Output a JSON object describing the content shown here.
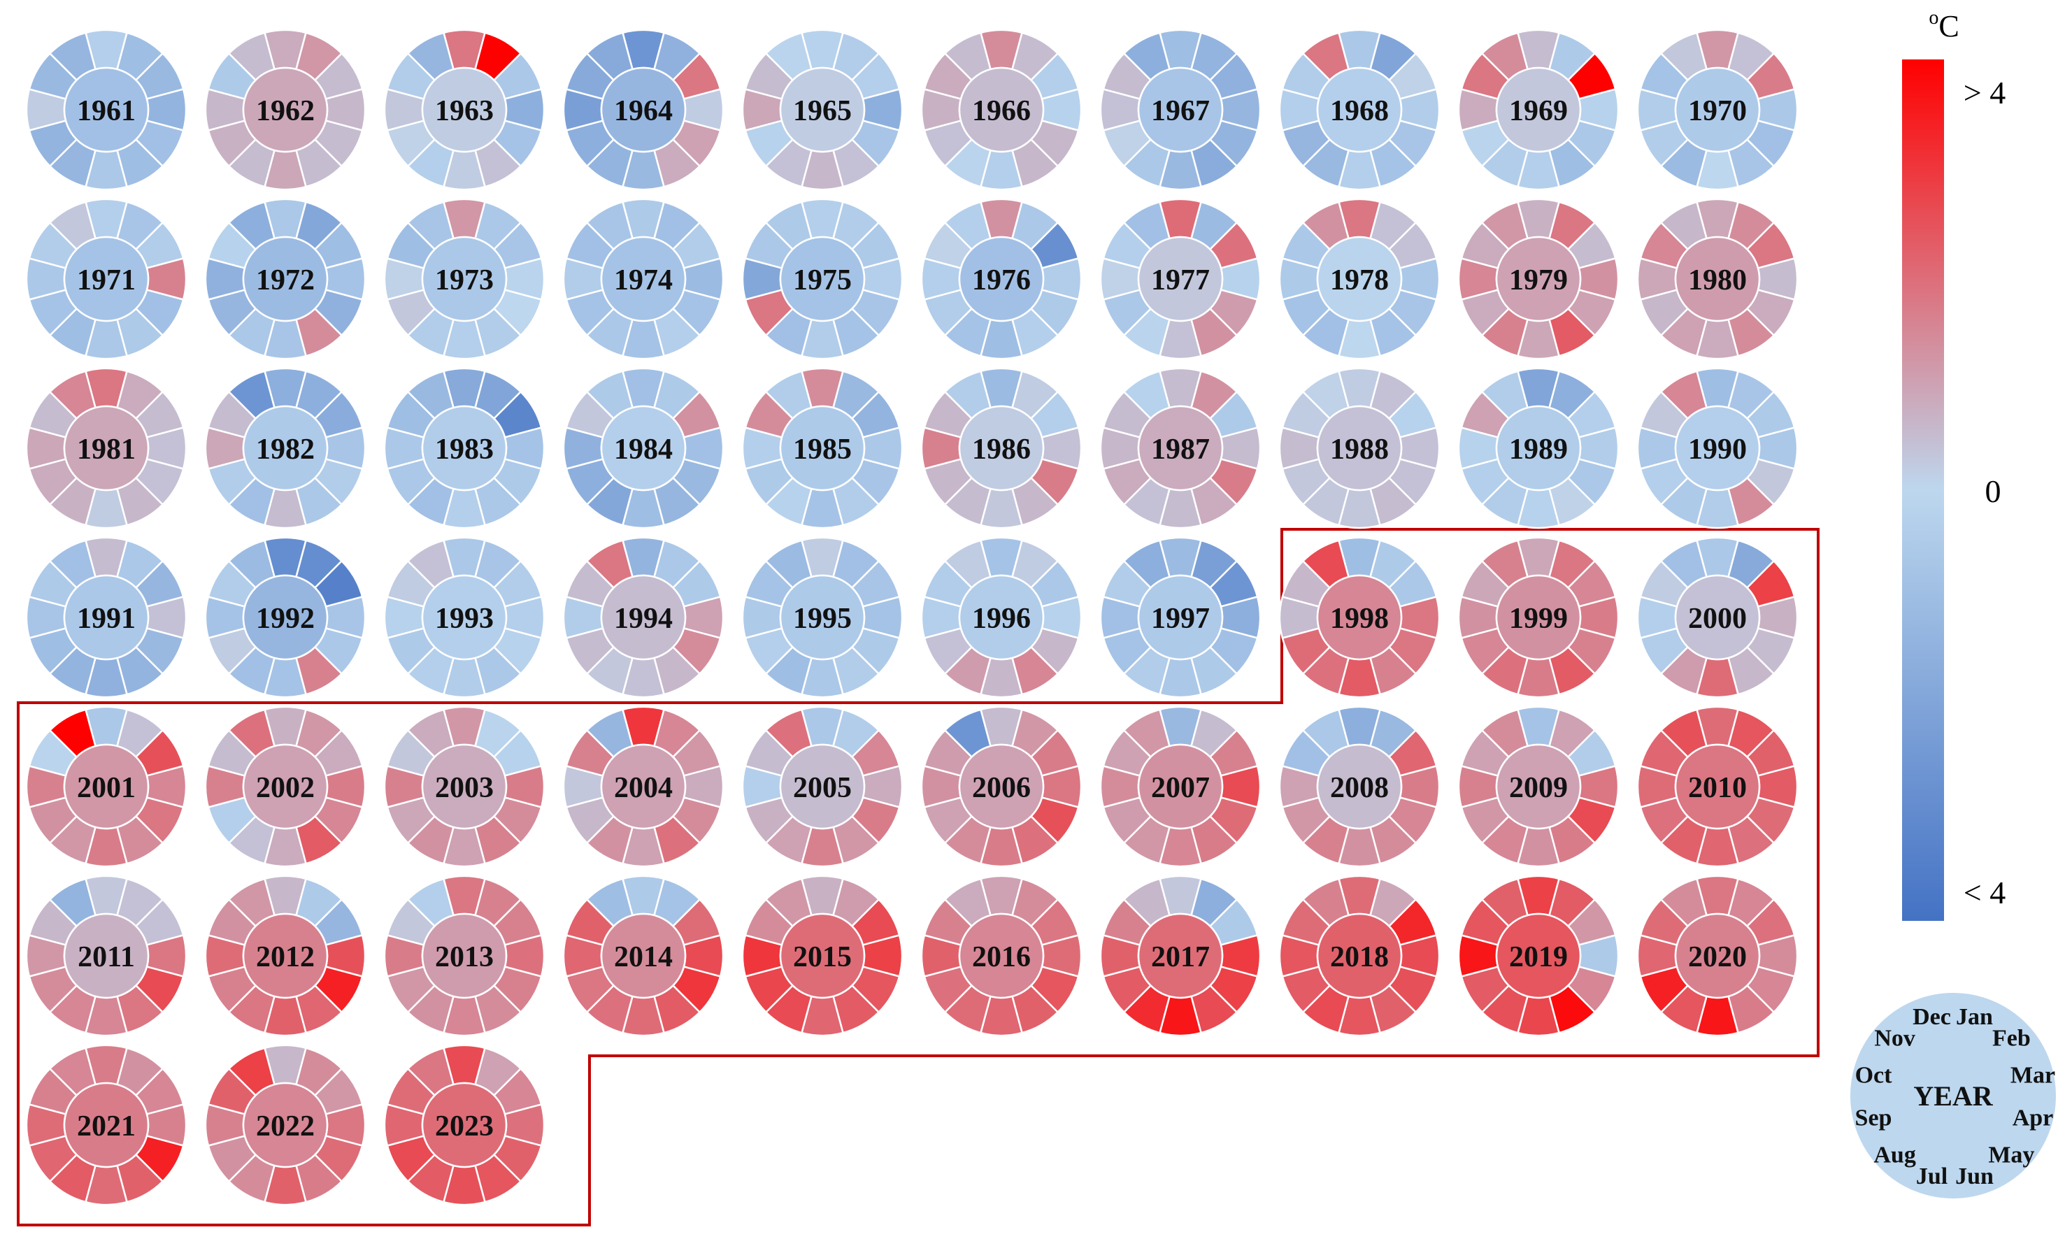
{
  "chart_data": {
    "type": "heatmap",
    "title": "",
    "layout": "circular small multiples: one ring per year, outer ring = 12 months clockwise from Jan at top, inner disc = annual value",
    "unit": "oC",
    "color_scale": {
      "min_label": "< 4",
      "mid_label": "0",
      "max_label": "> 4",
      "min": -4,
      "max": 4,
      "colors": [
        "#4472c4",
        "#bdd7ee",
        "#ff0000"
      ]
    },
    "highlight_region_color": "#c00000",
    "highlight_years_from": 1998,
    "months": [
      "Jan",
      "Feb",
      "Mar",
      "Apr",
      "May",
      "Jun",
      "Jul",
      "Aug",
      "Sep",
      "Oct",
      "Nov",
      "Dec"
    ],
    "key_center_label": "YEAR",
    "years": [
      {
        "year": "1961",
        "annual": -0.9,
        "months": [
          -0.3,
          -1.0,
          -1.2,
          -1.4,
          -0.9,
          -1.0,
          -0.6,
          -1.3,
          -1.4,
          0.2,
          -1.2,
          -1.3
        ]
      },
      {
        "year": "1962",
        "annual": 0.9,
        "months": [
          0.8,
          1.2,
          0.5,
          0.6,
          0.5,
          0.5,
          0.9,
          0.5,
          0.7,
          0.6,
          -0.5,
          0.5
        ]
      },
      {
        "year": "1963",
        "annual": 0.2,
        "months": [
          1.8,
          4.2,
          -0.6,
          -1.6,
          -0.8,
          0.4,
          0.2,
          -0.3,
          0.1,
          0.3,
          -0.4,
          -1.3
        ]
      },
      {
        "year": "1964",
        "annual": -1.3,
        "months": [
          -2.6,
          -1.5,
          1.8,
          0.2,
          1.0,
          0.8,
          -1.2,
          -1.4,
          -1.6,
          -2.2,
          -1.8,
          -1.8
        ]
      },
      {
        "year": "1965",
        "annual": 0.2,
        "months": [
          -0.2,
          -0.4,
          -0.3,
          -1.6,
          -0.7,
          0.4,
          0.6,
          0.4,
          -0.2,
          0.9,
          0.5,
          -0.1
        ]
      },
      {
        "year": "1966",
        "annual": 0.5,
        "months": [
          1.4,
          0.5,
          -0.3,
          -0.2,
          0.6,
          0.6,
          -0.3,
          -0.1,
          0.4,
          0.7,
          0.8,
          0.5
        ]
      },
      {
        "year": "1967",
        "annual": -0.7,
        "months": [
          -1.0,
          -1.4,
          -1.5,
          -1.3,
          -1.4,
          -1.7,
          -1.2,
          -0.6,
          0.1,
          0.4,
          0.5,
          -1.6
        ]
      },
      {
        "year": "1968",
        "annual": -0.3,
        "months": [
          -0.6,
          -2.0,
          0.1,
          -0.4,
          -0.7,
          -0.8,
          -0.3,
          -1.2,
          -1.3,
          -0.3,
          -0.4,
          1.8
        ]
      },
      {
        "year": "1969",
        "annual": 0.3,
        "months": [
          0.5,
          -0.5,
          4.1,
          -0.2,
          -0.6,
          -1.0,
          -0.3,
          -0.4,
          -0.1,
          0.8,
          1.8,
          1.4
        ]
      },
      {
        "year": "1970",
        "annual": -0.5,
        "months": [
          1.2,
          0.4,
          1.7,
          -0.6,
          -0.9,
          -0.7,
          0.0,
          -1.1,
          -0.4,
          -0.4,
          -0.8,
          0.3
        ]
      },
      {
        "year": "1971",
        "annual": -0.8,
        "months": [
          -0.3,
          -0.7,
          -0.4,
          1.6,
          -0.9,
          -0.5,
          -0.6,
          -1.0,
          -0.8,
          -0.6,
          -0.4,
          0.3
        ]
      },
      {
        "year": "1972",
        "annual": -1.1,
        "months": [
          -0.6,
          -1.9,
          -1.0,
          -0.8,
          -1.5,
          1.4,
          -0.7,
          -0.6,
          -1.3,
          -1.5,
          -0.2,
          -1.6
        ]
      },
      {
        "year": "1973",
        "annual": -0.6,
        "months": [
          1.2,
          -0.6,
          -0.7,
          -0.1,
          0.0,
          -0.4,
          -0.3,
          -0.4,
          0.3,
          0.1,
          -1.0,
          -0.7
        ]
      },
      {
        "year": "1974",
        "annual": -0.8,
        "months": [
          -0.5,
          -0.9,
          -0.4,
          -1.1,
          -0.8,
          -0.3,
          -0.8,
          -0.6,
          -0.8,
          -0.4,
          -0.9,
          -0.7
        ]
      },
      {
        "year": "1975",
        "annual": -0.8,
        "months": [
          -0.3,
          -0.4,
          -0.5,
          -0.3,
          -0.7,
          -0.8,
          -0.4,
          -0.9,
          1.8,
          -1.9,
          -0.6,
          -0.5
        ]
      },
      {
        "year": "1976",
        "annual": -0.9,
        "months": [
          1.3,
          -0.6,
          -2.8,
          -0.4,
          -0.5,
          -0.3,
          -1.0,
          -0.8,
          -0.4,
          -0.3,
          0.1,
          -0.3
        ]
      },
      {
        "year": "1977",
        "annual": 0.3,
        "months": [
          2.0,
          -1.1,
          1.9,
          -0.2,
          1.1,
          1.3,
          0.4,
          -0.1,
          -0.6,
          0.1,
          -0.3,
          -0.9
        ]
      },
      {
        "year": "1978",
        "annual": -0.1,
        "months": [
          1.8,
          0.4,
          0.4,
          -0.6,
          -0.7,
          -0.8,
          0.0,
          -0.9,
          -0.8,
          -0.5,
          -0.6,
          1.3
        ]
      },
      {
        "year": "1979",
        "annual": 1.0,
        "months": [
          0.7,
          1.8,
          0.5,
          1.3,
          1.0,
          2.3,
          0.9,
          1.6,
          0.8,
          1.5,
          0.8,
          1.2
        ]
      },
      {
        "year": "1980",
        "annual": 1.1,
        "months": [
          0.9,
          1.4,
          1.8,
          0.5,
          0.8,
          1.4,
          0.8,
          1.0,
          0.6,
          0.9,
          1.5,
          0.6
        ]
      },
      {
        "year": "1981",
        "annual": 0.9,
        "months": [
          1.8,
          0.8,
          0.5,
          0.4,
          0.4,
          0.6,
          0.2,
          0.7,
          0.8,
          0.9,
          0.5,
          1.5
        ]
      },
      {
        "year": "1982",
        "annual": -0.5,
        "months": [
          -1.6,
          -1.6,
          -1.7,
          -0.7,
          -0.4,
          -0.6,
          0.5,
          -0.9,
          -0.4,
          0.9,
          0.5,
          -2.6
        ]
      },
      {
        "year": "1983",
        "annual": -0.4,
        "months": [
          -1.8,
          -2.0,
          -3.2,
          -0.8,
          -0.5,
          -0.6,
          -0.3,
          -0.9,
          -0.6,
          -0.6,
          -1.0,
          -1.2
        ]
      },
      {
        "year": "1984",
        "annual": -0.3,
        "months": [
          -0.9,
          -0.5,
          1.3,
          -0.9,
          -1.2,
          -1.3,
          -1.0,
          -1.9,
          -1.6,
          -1.5,
          0.3,
          -0.5
        ]
      },
      {
        "year": "1985",
        "annual": -0.5,
        "months": [
          1.4,
          -1.2,
          -1.4,
          -0.6,
          -0.7,
          -0.4,
          -0.8,
          -0.2,
          -0.5,
          -0.3,
          1.4,
          -0.4
        ]
      },
      {
        "year": "1986",
        "annual": 0.2,
        "months": [
          -1.1,
          0.2,
          -0.3,
          0.4,
          1.7,
          0.6,
          0.3,
          0.5,
          0.6,
          1.6,
          0.6,
          -0.4
        ]
      },
      {
        "year": "1987",
        "annual": 0.8,
        "months": [
          0.5,
          1.3,
          -0.5,
          0.5,
          1.7,
          0.8,
          0.5,
          0.4,
          0.8,
          0.6,
          0.5,
          -0.2
        ]
      },
      {
        "year": "1988",
        "annual": 0.4,
        "months": [
          0.2,
          0.4,
          -0.2,
          0.4,
          0.4,
          0.5,
          0.3,
          0.3,
          0.3,
          0.5,
          0.2,
          0.1
        ]
      },
      {
        "year": "1989",
        "annual": -0.4,
        "months": [
          -2.0,
          -1.6,
          -0.3,
          -0.4,
          -0.6,
          0.1,
          -0.2,
          -0.4,
          -0.3,
          -0.2,
          1.0,
          -0.4
        ]
      },
      {
        "year": "1990",
        "annual": -0.3,
        "months": [
          -1.0,
          -0.7,
          -0.5,
          -0.6,
          0.3,
          1.4,
          -0.4,
          -0.5,
          -0.3,
          -0.6,
          0.3,
          1.5
        ]
      },
      {
        "year": "1991",
        "annual": -0.6,
        "months": [
          0.5,
          -0.6,
          -1.3,
          0.4,
          -1.2,
          -1.4,
          -1.5,
          -1.4,
          -1.0,
          -0.7,
          -0.5,
          -0.9
        ]
      },
      {
        "year": "1992",
        "annual": -1.3,
        "months": [
          -2.9,
          -2.9,
          -3.4,
          -0.7,
          -0.6,
          1.6,
          -0.8,
          -0.9,
          0.2,
          -0.8,
          -0.4,
          -1.1
        ]
      },
      {
        "year": "1993",
        "annual": -0.3,
        "months": [
          -0.6,
          -0.7,
          -0.4,
          -0.3,
          -0.2,
          -0.6,
          -0.4,
          -0.3,
          -0.5,
          -0.2,
          0.2,
          0.4
        ]
      },
      {
        "year": "1994",
        "annual": 0.5,
        "months": [
          -1.4,
          -0.6,
          -0.5,
          1.0,
          1.4,
          0.6,
          0.4,
          0.3,
          0.5,
          -0.4,
          0.5,
          1.8
        ]
      },
      {
        "year": "1995",
        "annual": -0.5,
        "months": [
          0.2,
          -0.9,
          -0.7,
          -0.8,
          -0.5,
          -0.4,
          -0.6,
          -1.0,
          -0.3,
          -0.5,
          -0.8,
          -1.1
        ]
      },
      {
        "year": "1996",
        "annual": -0.4,
        "months": [
          -0.8,
          0.2,
          -0.6,
          -0.2,
          0.6,
          1.5,
          0.6,
          1.1,
          0.4,
          -0.3,
          -0.4,
          0.2
        ]
      },
      {
        "year": "1997",
        "annual": -0.5,
        "months": [
          -1.1,
          -2.2,
          -2.6,
          -1.6,
          -0.9,
          -0.5,
          -0.6,
          -0.4,
          -0.8,
          -0.9,
          -0.4,
          -1.6
        ]
      },
      {
        "year": "1998",
        "annual": 1.5,
        "months": [
          -1.0,
          -0.5,
          -0.6,
          1.8,
          1.8,
          1.6,
          2.3,
          1.9,
          2.0,
          0.5,
          0.6,
          2.6
        ]
      },
      {
        "year": "1999",
        "annual": 1.3,
        "months": [
          0.9,
          1.8,
          1.5,
          1.7,
          1.6,
          2.3,
          1.7,
          1.9,
          1.5,
          1.3,
          0.9,
          1.6
        ]
      },
      {
        "year": "2000",
        "annual": 0.4,
        "months": [
          -0.6,
          -1.8,
          2.8,
          0.7,
          0.5,
          0.6,
          2.0,
          1.1,
          -0.4,
          -0.3,
          0.2,
          -0.9
        ]
      },
      {
        "year": "2001",
        "annual": 1.2,
        "months": [
          -0.6,
          0.4,
          2.5,
          1.5,
          1.8,
          1.4,
          1.7,
          1.2,
          1.3,
          1.6,
          -0.1,
          4.0
        ]
      },
      {
        "year": "2002",
        "annual": 1.0,
        "months": [
          0.7,
          1.2,
          0.8,
          1.7,
          1.5,
          2.3,
          0.8,
          0.4,
          -0.3,
          1.6,
          0.5,
          1.9
        ]
      },
      {
        "year": "2003",
        "annual": 0.8,
        "months": [
          1.2,
          -0.1,
          -0.2,
          1.7,
          1.4,
          1.6,
          1.0,
          1.3,
          0.9,
          1.6,
          0.3,
          0.8
        ]
      },
      {
        "year": "2004",
        "annual": 1.0,
        "months": [
          3.0,
          1.5,
          1.2,
          0.8,
          1.4,
          1.9,
          1.0,
          1.3,
          0.6,
          0.3,
          1.6,
          -1.3
        ]
      },
      {
        "year": "2005",
        "annual": 0.5,
        "months": [
          -0.6,
          -0.4,
          1.5,
          0.8,
          1.7,
          1.2,
          1.6,
          1.0,
          0.7,
          -0.3,
          0.5,
          1.9
        ]
      },
      {
        "year": "2006",
        "annual": 1.0,
        "months": [
          0.5,
          1.2,
          1.7,
          1.8,
          2.5,
          1.9,
          1.7,
          1.4,
          1.0,
          1.3,
          1.1,
          -2.6
        ]
      },
      {
        "year": "2007",
        "annual": 1.3,
        "months": [
          -1.2,
          0.5,
          1.6,
          2.6,
          2.0,
          1.7,
          1.5,
          1.2,
          1.1,
          1.4,
          1.0,
          1.2
        ]
      },
      {
        "year": "2008",
        "annual": 0.5,
        "months": [
          -1.6,
          -1.2,
          2.1,
          1.7,
          1.5,
          1.4,
          1.3,
          1.6,
          1.2,
          1.0,
          -0.9,
          -0.6
        ]
      },
      {
        "year": "2009",
        "annual": 1.0,
        "months": [
          -0.8,
          1.0,
          -0.4,
          1.8,
          2.6,
          1.7,
          1.3,
          1.5,
          1.2,
          1.6,
          1.0,
          1.4
        ]
      },
      {
        "year": "2010",
        "annual": 1.8,
        "months": [
          2.0,
          2.4,
          2.2,
          2.3,
          2.0,
          1.9,
          2.1,
          2.2,
          1.9,
          2.0,
          2.1,
          2.5
        ]
      },
      {
        "year": "2011",
        "annual": 0.7,
        "months": [
          0.3,
          0.4,
          0.4,
          1.8,
          2.6,
          1.8,
          1.5,
          1.5,
          1.4,
          1.2,
          0.6,
          -1.4
        ]
      },
      {
        "year": "2012",
        "annual": 1.6,
        "months": [
          0.6,
          -0.5,
          -1.3,
          2.5,
          3.4,
          2.1,
          2.2,
          1.8,
          1.6,
          2.0,
          1.3,
          1.2
        ]
      },
      {
        "year": "2013",
        "annual": 1.1,
        "months": [
          1.8,
          1.6,
          1.6,
          1.9,
          1.6,
          1.4,
          1.5,
          1.3,
          1.2,
          1.7,
          0.3,
          -0.3
        ]
      },
      {
        "year": "2014",
        "annual": 1.4,
        "months": [
          -0.5,
          -0.8,
          2.0,
          2.6,
          3.0,
          2.3,
          2.0,
          1.9,
          1.8,
          2.1,
          2.2,
          -1.0
        ]
      },
      {
        "year": "2015",
        "annual": 2.0,
        "months": [
          0.7,
          1.1,
          2.6,
          2.8,
          2.4,
          2.3,
          2.1,
          2.6,
          2.7,
          3.0,
          1.4,
          1.2
        ]
      },
      {
        "year": "2016",
        "annual": 1.5,
        "months": [
          1.0,
          1.4,
          1.8,
          2.0,
          2.4,
          2.2,
          2.1,
          2.0,
          1.9,
          2.2,
          1.6,
          0.8
        ]
      },
      {
        "year": "2017",
        "annual": 2.0,
        "months": [
          0.3,
          -1.6,
          -0.5,
          2.9,
          2.8,
          2.6,
          3.6,
          3.2,
          2.3,
          2.2,
          1.6,
          0.6
        ]
      },
      {
        "year": "2018",
        "annual": 2.2,
        "months": [
          2.0,
          0.9,
          3.3,
          2.6,
          2.5,
          2.2,
          2.4,
          2.6,
          2.3,
          2.4,
          2.0,
          1.6
        ]
      },
      {
        "year": "2019",
        "annual": 2.4,
        "months": [
          2.8,
          2.3,
          1.2,
          -0.5,
          1.5,
          3.8,
          2.7,
          2.5,
          2.3,
          3.6,
          2.4,
          2.2
        ]
      },
      {
        "year": "2020",
        "annual": 1.6,
        "months": [
          1.8,
          1.5,
          1.9,
          1.4,
          1.5,
          1.7,
          3.6,
          2.4,
          3.4,
          2.1,
          2.0,
          1.4
        ]
      },
      {
        "year": "2021",
        "annual": 1.7,
        "months": [
          1.7,
          1.3,
          1.5,
          1.6,
          3.4,
          2.2,
          2.0,
          2.3,
          2.1,
          2.0,
          1.6,
          1.5
        ]
      },
      {
        "year": "2022",
        "annual": 1.5,
        "months": [
          0.6,
          1.4,
          1.2,
          1.8,
          2.0,
          1.7,
          2.2,
          1.4,
          1.3,
          1.6,
          2.2,
          2.8
        ]
      },
      {
        "year": "2023",
        "annual": 2.0,
        "months": [
          2.6,
          1.0,
          1.5,
          1.9,
          2.2,
          2.4,
          2.5,
          2.3,
          2.6,
          2.1,
          2.0,
          1.8
        ]
      }
    ]
  }
}
